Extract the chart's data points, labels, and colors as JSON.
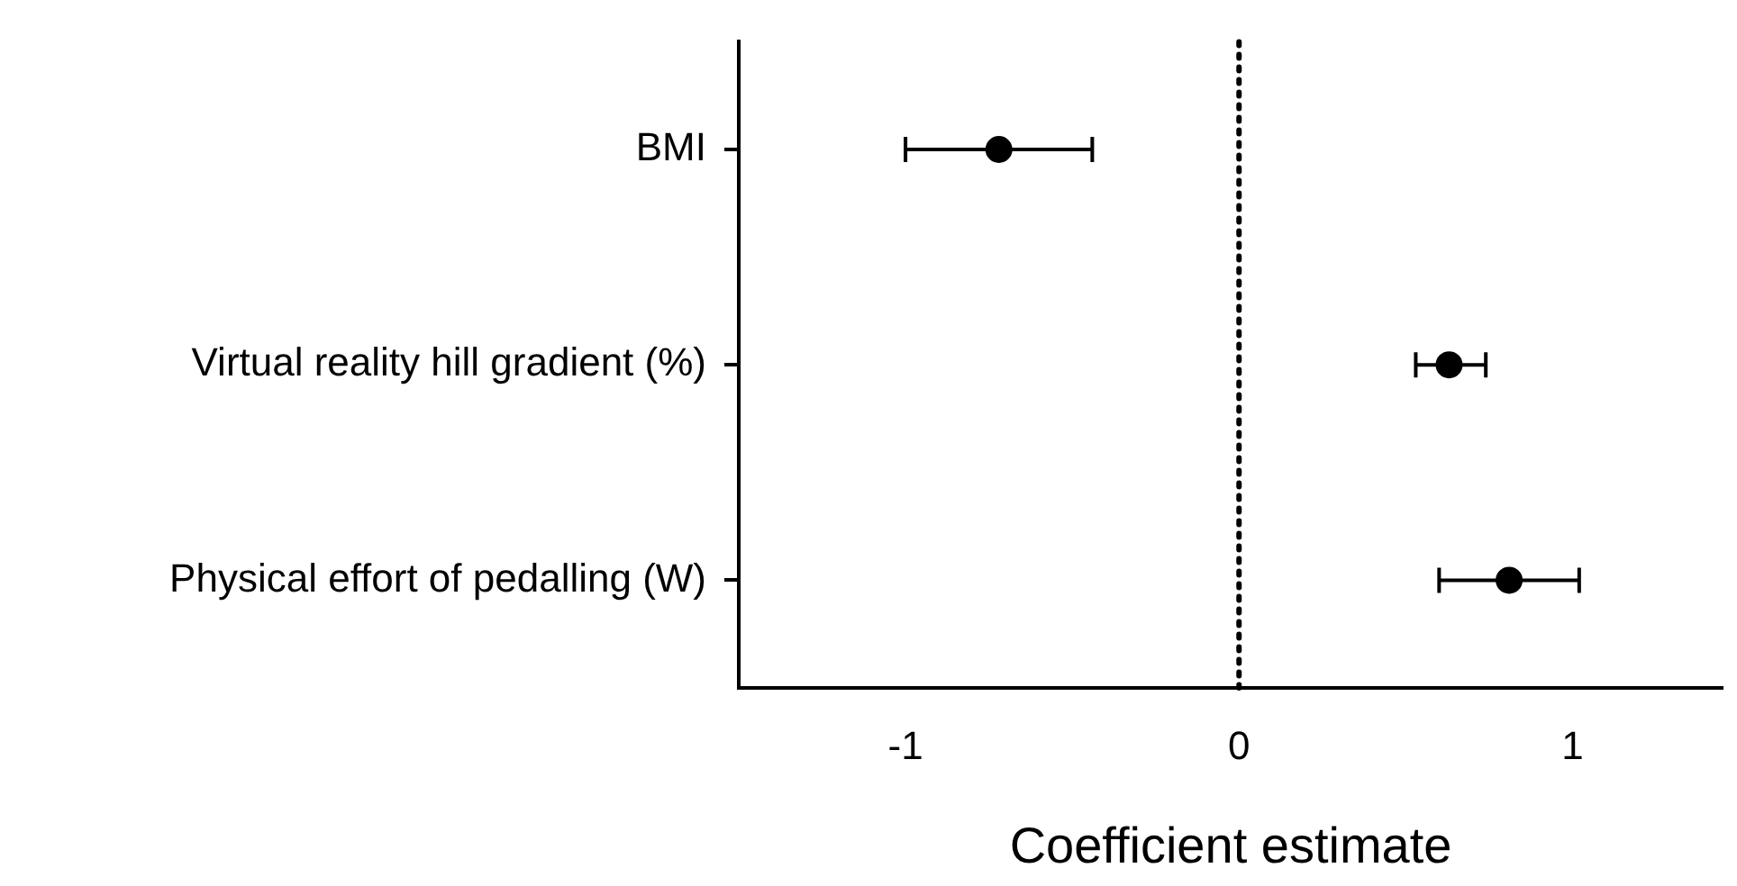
{
  "chart_data": {
    "type": "scatter",
    "orientation": "horizontal",
    "xlabel": "Coefficient estimate",
    "categories": [
      "BMI",
      "Virtual reality hill gradient (%)",
      "Physical effort of pedalling (W)"
    ],
    "values": [
      -0.72,
      0.63,
      0.81
    ],
    "errors": [
      [
        -1.0,
        -0.44
      ],
      [
        0.53,
        0.74
      ],
      [
        0.6,
        1.02
      ]
    ],
    "color": "#000000",
    "marker": "circle",
    "grid": false,
    "legend": false,
    "xlim": [
      -1.5,
      1.45
    ],
    "xticks": [
      -1,
      0,
      1
    ],
    "ref_lines": [
      {
        "axis": "x",
        "value": 0,
        "line_style": "dotted",
        "color": "#000000"
      }
    ]
  }
}
